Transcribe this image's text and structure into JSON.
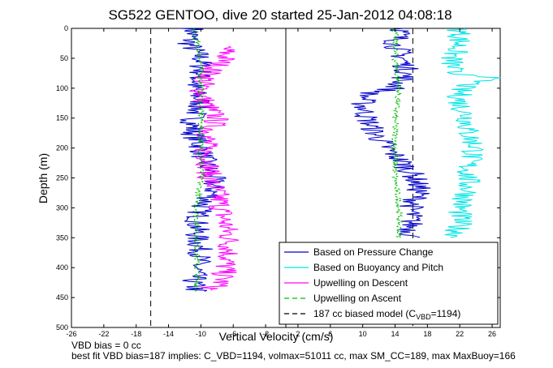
{
  "chart_data": {
    "type": "line",
    "title": "SG522 GENTOO, dive 20 started 25-Jan-2012 04:08:18",
    "xlabel": "Vertical Velocity (cm/s)",
    "ylabel": "Depth (m)",
    "xlim": [
      -26,
      27
    ],
    "ylim": [
      500,
      0
    ],
    "y_reversed": true,
    "grid": false,
    "x_ticks": [
      -26,
      -22,
      -18,
      -14,
      -10,
      -6,
      -2,
      2,
      6,
      10,
      14,
      18,
      22,
      26
    ],
    "y_ticks": [
      0,
      50,
      100,
      150,
      200,
      250,
      300,
      350,
      400,
      450,
      500
    ],
    "legend": {
      "placement": "bottom-right",
      "entries": [
        {
          "label": "Based on Pressure Change",
          "color": "#0000cc",
          "style": "solid"
        },
        {
          "label": "Based on Buoyancy and Pitch",
          "color": "#00e5e5",
          "style": "solid"
        },
        {
          "label": "Upwelling on Descent",
          "color": "#ff00ff",
          "style": "solid"
        },
        {
          "label": "Upwelling on Ascent",
          "color": "#00bb00",
          "style": "dashed"
        },
        {
          "label": "187 cc biased model (C",
          "sub": "VBD",
          "suffix": "=1194)",
          "color": "#000000",
          "style": "dashed"
        }
      ]
    },
    "reference_lines": [
      {
        "x": -16.2,
        "style": "dashed",
        "color": "#000000"
      },
      {
        "x": 0.5,
        "style": "solid",
        "color": "#000000"
      },
      {
        "x": 16.2,
        "style": "dashed",
        "color": "#000000"
      }
    ],
    "series": [
      {
        "color": "#0000cc",
        "depth": [
          0,
          25,
          50,
          75,
          100,
          125,
          150,
          175,
          200,
          225,
          250,
          275,
          300,
          325,
          350,
          375,
          400,
          425,
          440
        ],
        "x": [
          -11,
          -11.5,
          -10,
          -10,
          -11,
          -10,
          -11,
          -11,
          -10,
          -9.5,
          -8.5,
          -8.5,
          -10,
          -10.5,
          -10.5,
          -10,
          -10.5,
          -11,
          -10.5
        ]
      },
      {
        "color": "#ff00ff",
        "depth": [
          30,
          50,
          75,
          100,
          125,
          150,
          175,
          200,
          225,
          250,
          275,
          300,
          325,
          350,
          375,
          400,
          425,
          438
        ],
        "x": [
          -7,
          -7,
          -9,
          -10,
          -9.5,
          -8,
          -9,
          -9.5,
          -9,
          -9,
          -8,
          -7.5,
          -7,
          -6.5,
          -6.5,
          -7,
          -7.5,
          -9
        ]
      },
      {
        "color": "#00bb00",
        "dashed": true,
        "depth": [
          0,
          50,
          100,
          150,
          200,
          250,
          300,
          350,
          400,
          440
        ],
        "x": [
          -11,
          -10,
          -10,
          -10,
          -10,
          -10,
          -10.5,
          -10.5,
          -10.5,
          -10.5
        ]
      },
      {
        "color": "#0000cc",
        "depth": [
          0,
          25,
          50,
          75,
          100,
          110,
          125,
          150,
          175,
          200,
          225,
          250,
          275,
          300,
          325,
          350
        ],
        "x": [
          15,
          14,
          15,
          15.5,
          14,
          10.5,
          10,
          10.5,
          11.5,
          13,
          15,
          16.5,
          17,
          16,
          16,
          16
        ]
      },
      {
        "color": "#00bb00",
        "dashed": true,
        "depth": [
          0,
          50,
          100,
          150,
          200,
          250,
          300,
          350
        ],
        "x": [
          14,
          14,
          14.5,
          14,
          14,
          14,
          14.5,
          14.5
        ]
      },
      {
        "color": "#00e5e5",
        "depth": [
          0,
          25,
          50,
          75,
          80,
          100,
          125,
          150,
          175,
          200,
          225,
          250,
          275,
          300,
          325,
          350
        ],
        "x": [
          22,
          22,
          21,
          21,
          26,
          22,
          22,
          23,
          23,
          24,
          23,
          23,
          23,
          22,
          22,
          21.5
        ]
      }
    ]
  },
  "footer": {
    "line1": "VBD bias = 0 cc",
    "line2": "best fit VBD bias=187 implies: C_VBD=1194, volmax=51011 cc, max SM_CC=189, max MaxBuoy=166"
  }
}
